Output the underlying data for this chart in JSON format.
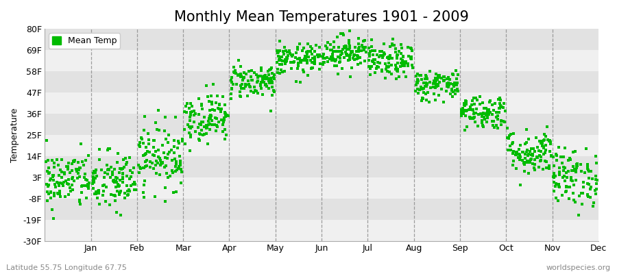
{
  "title": "Monthly Mean Temperatures 1901 - 2009",
  "ylabel": "Temperature",
  "xlabel_bottom_left": "Latitude 55.75 Longitude 67.75",
  "xlabel_bottom_right": "worldspecies.org",
  "legend_label": "Mean Temp",
  "ylim": [
    -30,
    80
  ],
  "yticks": [
    -30,
    -19,
    -8,
    3,
    14,
    25,
    36,
    47,
    58,
    69,
    80
  ],
  "ytick_labels": [
    "-30F",
    "-19F",
    "-8F",
    "3F",
    "14F",
    "25F",
    "36F",
    "47F",
    "58F",
    "69F",
    "80F"
  ],
  "months": [
    "Jan",
    "Feb",
    "Mar",
    "Apr",
    "May",
    "Jun",
    "Jul",
    "Aug",
    "Sep",
    "Oct",
    "Nov",
    "Dec"
  ],
  "dot_color": "#00BB00",
  "band_colors": [
    "#F0F0F0",
    "#E2E2E2"
  ],
  "title_fontsize": 15,
  "axis_label_fontsize": 9,
  "tick_fontsize": 9,
  "monthly_means": [
    1.5,
    0.5,
    14.0,
    34.0,
    53.0,
    64.0,
    68.0,
    63.0,
    51.0,
    37.0,
    16.0,
    3.0
  ],
  "monthly_stds": [
    7.5,
    8.0,
    8.5,
    6.5,
    4.5,
    4.0,
    4.5,
    4.5,
    4.0,
    4.5,
    6.0,
    7.5
  ],
  "n_years": 109,
  "xlim": [
    0,
    12
  ],
  "vline_color": "#888888",
  "vline_positions": [
    1,
    2,
    3,
    4,
    5,
    6,
    7,
    8,
    9,
    10,
    11
  ],
  "xtick_positions": [
    1,
    2,
    3,
    4,
    5,
    6,
    7,
    8,
    9,
    10,
    11,
    12
  ],
  "fig_bg": "#FFFFFF",
  "ax_bg": "#EBEBEB"
}
